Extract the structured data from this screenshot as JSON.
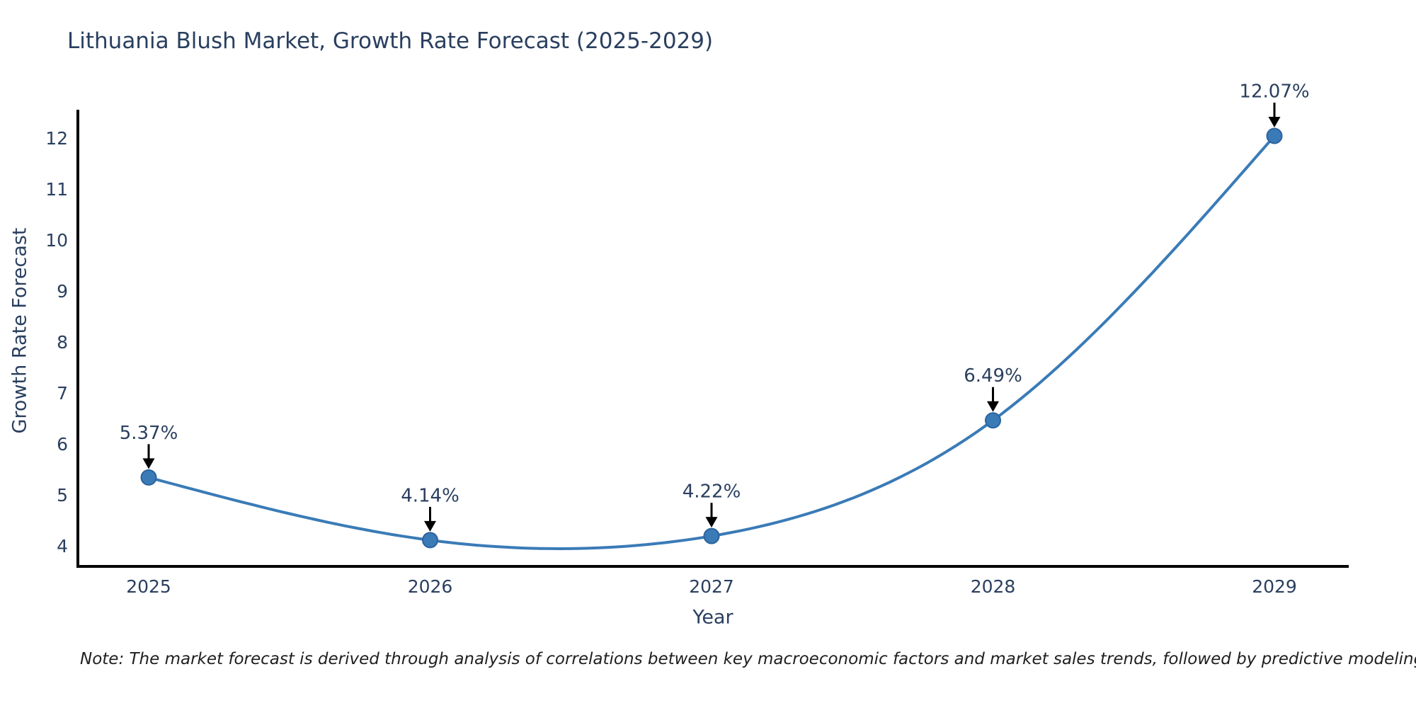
{
  "page": {
    "note": "Note: The market forecast is derived through analysis of correlations between key macroeconomic factors and market sales trends, followed by predictive modeling to project future sales"
  },
  "chart_data": {
    "type": "line",
    "title": "Lithuania Blush Market, Growth Rate Forecast (2025-2029)",
    "xlabel": "Year",
    "ylabel": "Growth Rate Forecast",
    "x": [
      2025,
      2026,
      2027,
      2028,
      2029
    ],
    "series": [
      {
        "name": "Growth Rate Forecast",
        "values": [
          5.37,
          4.14,
          4.22,
          6.49,
          12.07
        ]
      }
    ],
    "point_labels": [
      "5.37%",
      "4.14%",
      "4.22%",
      "6.49%",
      "12.07%"
    ],
    "yticks": [
      4,
      5,
      6,
      7,
      8,
      9,
      10,
      11,
      12
    ],
    "ylim": [
      4,
      12
    ],
    "grid": false,
    "line_shape": "spline",
    "legend": "none",
    "colors": {
      "line": "#3a7bb7",
      "marker_fill": "#3a7bb7",
      "marker_edge": "#2c639c",
      "axis_line": "#000000",
      "tick_text": "#2a3f5f",
      "annotation_text": "#2a3f5f",
      "annotation_arrow": "#000000"
    }
  }
}
